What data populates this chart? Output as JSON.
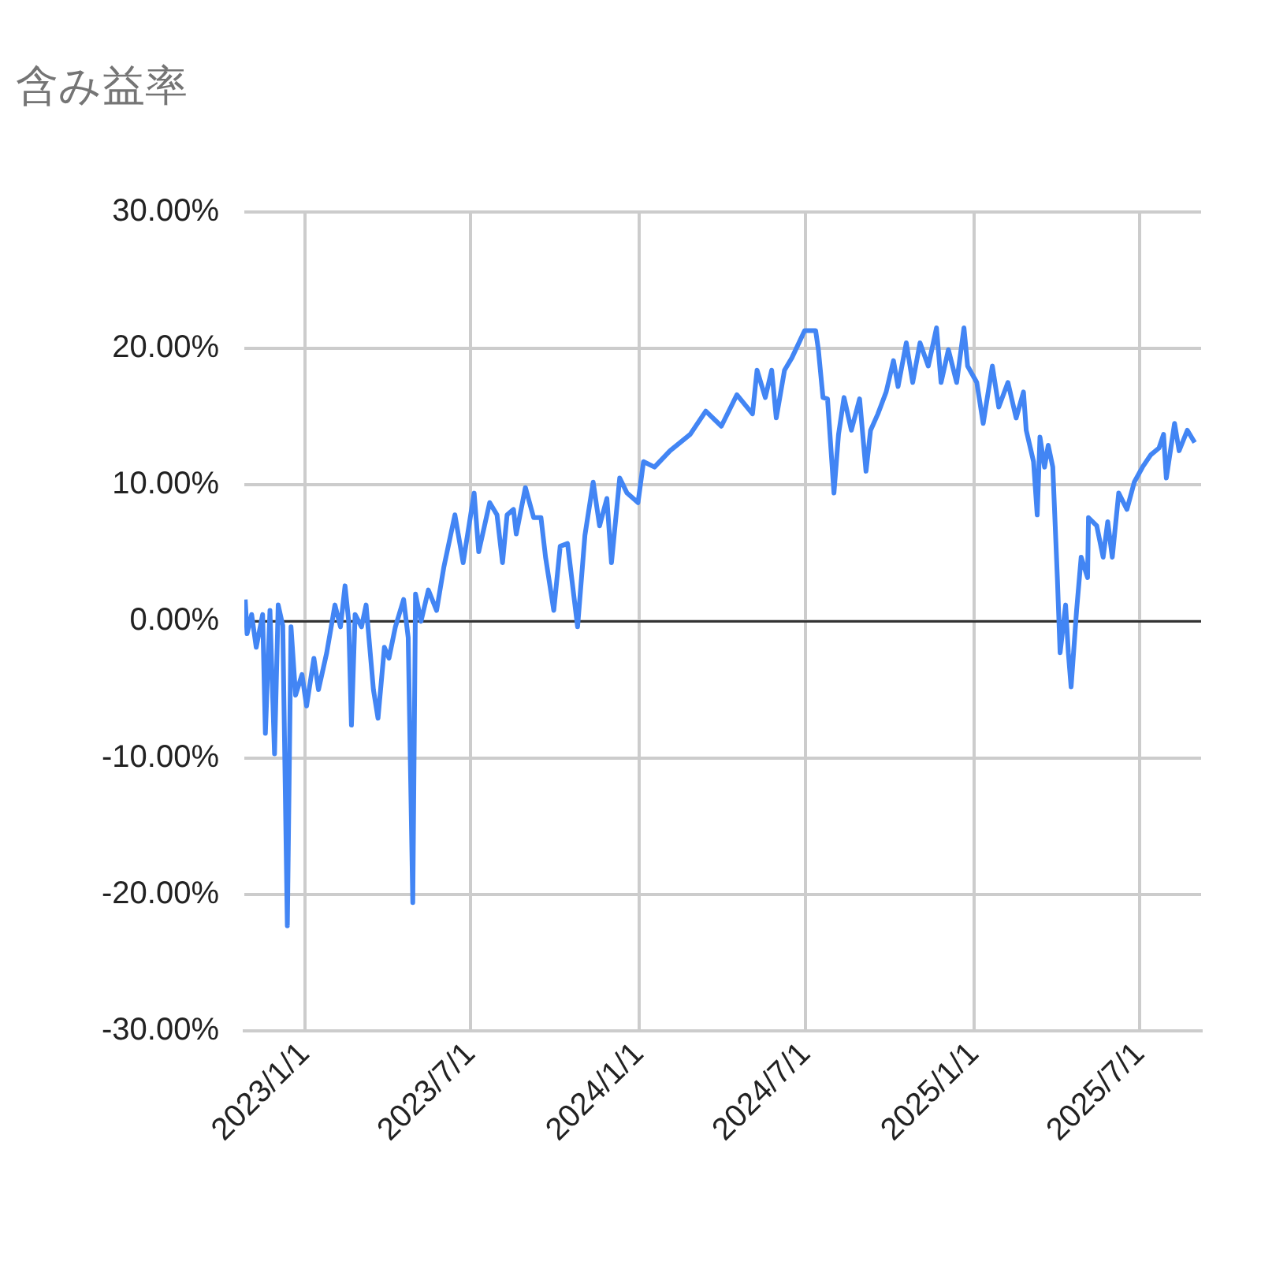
{
  "chart_data": {
    "type": "line",
    "title": "含み益率",
    "xlim": [
      "2022-10-27",
      "2025-09-06"
    ],
    "xticks": [
      {
        "value": "2023-01-01",
        "label": "2023/1/1"
      },
      {
        "value": "2023-07-01",
        "label": "2023/7/1"
      },
      {
        "value": "2024-01-01",
        "label": "2024/1/1"
      },
      {
        "value": "2024-07-01",
        "label": "2024/7/1"
      },
      {
        "value": "2025-01-01",
        "label": "2025/1/1"
      },
      {
        "value": "2025-07-01",
        "label": "2025/7/1"
      }
    ],
    "ylim": [
      -30,
      30
    ],
    "yticks": [
      {
        "value": -30,
        "label": "-30.00%"
      },
      {
        "value": -20,
        "label": "-20.00%"
      },
      {
        "value": -10,
        "label": "-10.00%"
      },
      {
        "value": 0,
        "label": "0.00%"
      },
      {
        "value": 10,
        "label": "10.00%"
      },
      {
        "value": 20,
        "label": "20.00%"
      },
      {
        "value": 30,
        "label": "30.00%"
      }
    ],
    "grid": true,
    "legend": false,
    "ref_lines": [
      {
        "axis": "y",
        "value": 0,
        "color": "#333333"
      }
    ],
    "x": [
      "2022-10-28",
      "2022-10-30",
      "2022-11-04",
      "2022-11-09",
      "2022-11-16",
      "2022-11-19",
      "2022-11-24",
      "2022-11-29",
      "2022-12-03",
      "2022-12-08",
      "2022-12-13",
      "2022-12-17",
      "2022-12-22",
      "2022-12-29",
      "2023-01-03",
      "2023-01-11",
      "2023-01-16",
      "2023-01-25",
      "2023-02-03",
      "2023-02-09",
      "2023-02-14",
      "2023-02-18",
      "2023-02-21",
      "2023-02-25",
      "2023-03-04",
      "2023-03-09",
      "2023-03-17",
      "2023-03-22",
      "2023-03-29",
      "2023-04-03",
      "2023-04-10",
      "2023-04-19",
      "2023-04-24",
      "2023-04-29",
      "2023-05-02",
      "2023-05-08",
      "2023-05-16",
      "2023-05-25",
      "2023-06-02",
      "2023-06-14",
      "2023-06-23",
      "2023-07-05",
      "2023-07-10",
      "2023-07-22",
      "2023-07-30",
      "2023-08-05",
      "2023-08-10",
      "2023-08-17",
      "2023-08-20",
      "2023-08-30",
      "2023-09-08",
      "2023-09-16",
      "2023-09-21",
      "2023-09-30",
      "2023-10-07",
      "2023-10-15",
      "2023-10-26",
      "2023-11-03",
      "2023-11-12",
      "2023-11-19",
      "2023-11-27",
      "2023-12-02",
      "2023-12-11",
      "2023-12-19",
      "2023-12-31",
      "2024-01-06",
      "2024-01-18",
      "2024-02-04",
      "2024-02-26",
      "2024-03-14",
      "2024-03-31",
      "2024-04-17",
      "2024-05-04",
      "2024-05-09",
      "2024-05-18",
      "2024-05-25",
      "2024-05-30",
      "2024-06-08",
      "2024-06-16",
      "2024-06-30",
      "2024-07-12",
      "2024-07-15",
      "2024-07-20",
      "2024-07-25",
      "2024-08-01",
      "2024-08-06",
      "2024-08-12",
      "2024-08-20",
      "2024-08-29",
      "2024-09-05",
      "2024-09-10",
      "2024-09-18",
      "2024-09-27",
      "2024-10-05",
      "2024-10-10",
      "2024-10-19",
      "2024-10-26",
      "2024-11-03",
      "2024-11-12",
      "2024-11-21",
      "2024-11-26",
      "2024-12-04",
      "2024-12-13",
      "2024-12-21",
      "2024-12-25",
      "2025-01-04",
      "2025-01-11",
      "2025-01-21",
      "2025-01-28",
      "2025-02-07",
      "2025-02-16",
      "2025-02-24",
      "2025-02-27",
      "2025-03-07",
      "2025-03-11",
      "2025-03-14",
      "2025-03-19",
      "2025-03-23",
      "2025-03-28",
      "2025-04-02",
      "2025-04-05",
      "2025-04-11",
      "2025-04-14",
      "2025-04-17",
      "2025-04-23",
      "2025-04-28",
      "2025-05-05",
      "2025-05-06",
      "2025-05-15",
      "2025-05-22",
      "2025-05-27",
      "2025-06-01",
      "2025-06-08",
      "2025-06-17",
      "2025-06-25",
      "2025-07-04",
      "2025-07-13",
      "2025-07-22",
      "2025-07-27",
      "2025-07-30",
      "2025-08-08",
      "2025-08-13",
      "2025-08-22",
      "2025-08-30"
    ],
    "series": [
      {
        "color": "#4285f4",
        "values": [
          1.6,
          -0.9,
          0.5,
          -1.9,
          0.5,
          -8.2,
          0.8,
          -9.7,
          1.2,
          -0.3,
          -22.3,
          -0.4,
          -5.4,
          -3.9,
          -6.2,
          -2.7,
          -5.0,
          -2.3,
          1.2,
          -0.4,
          2.6,
          0,
          -7.6,
          0.5,
          -0.4,
          1.2,
          -5.0,
          -7.1,
          -1.9,
          -2.7,
          -0.4,
          1.6,
          -1.2,
          -20.6,
          2.0,
          0,
          2.3,
          0.8,
          4.0,
          7.8,
          4.3,
          9.4,
          5.1,
          8.7,
          7.8,
          4.3,
          7.8,
          8.2,
          6.4,
          9.8,
          7.6,
          7.6,
          4.7,
          0.8,
          5.5,
          5.7,
          -0.4,
          6.3,
          10.2,
          7.0,
          9.0,
          4.3,
          10.5,
          9.4,
          8.7,
          11.7,
          11.3,
          12.5,
          13.7,
          15.4,
          14.3,
          16.6,
          15.2,
          18.4,
          16.4,
          18.4,
          14.9,
          18.4,
          19.3,
          21.3,
          21.3,
          19.9,
          16.4,
          16.3,
          9.4,
          13.7,
          16.4,
          14.0,
          16.3,
          11.0,
          14.0,
          15.2,
          16.8,
          19.1,
          17.2,
          20.4,
          17.5,
          20.4,
          18.7,
          21.5,
          17.5,
          19.9,
          17.5,
          21.5,
          18.7,
          17.5,
          14.5,
          18.7,
          15.7,
          17.5,
          14.9,
          16.8,
          14.0,
          11.7,
          7.8,
          13.5,
          11.3,
          12.9,
          11.3,
          3.2,
          -2.3,
          1.2,
          -2.3,
          -4.8,
          0.8,
          4.7,
          3.2,
          7.6,
          7.0,
          4.7,
          7.3,
          4.7,
          9.4,
          8.2,
          10.2,
          11.3,
          12.2,
          12.7,
          13.7,
          10.5,
          14.5,
          12.5,
          14.0,
          13.1
        ]
      }
    ]
  }
}
